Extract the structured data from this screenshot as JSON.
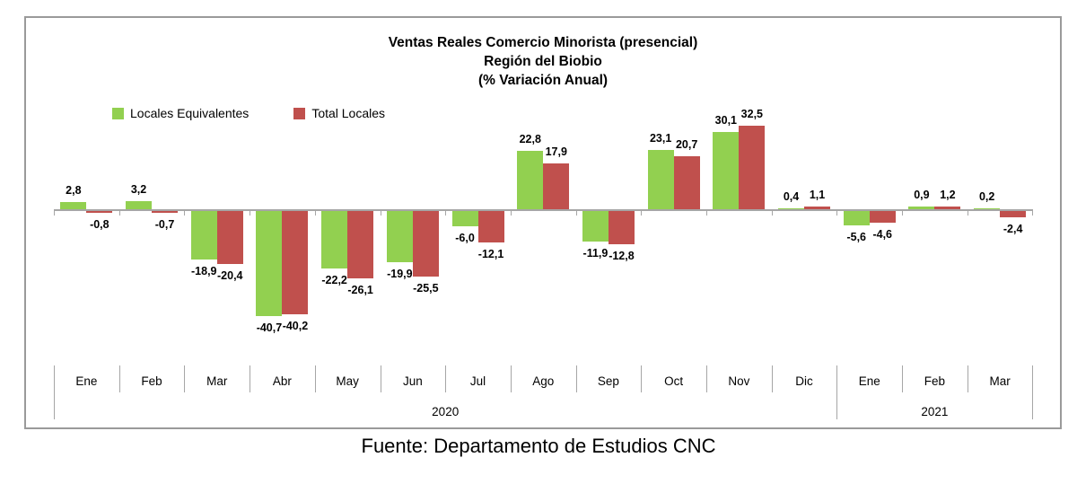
{
  "footer": {
    "text": "Fuente: Departamento de Estudios CNC"
  },
  "chart_data": {
    "type": "bar",
    "title": "Ventas Reales Comercio Minorista (presencial)",
    "subtitle": "Región del Biobio",
    "subtitle2": "(% Variación Anual)",
    "categories": [
      "Ene",
      "Feb",
      "Mar",
      "Abr",
      "May",
      "Jun",
      "Jul",
      "Ago",
      "Sep",
      "Oct",
      "Nov",
      "Dic",
      "Ene",
      "Feb",
      "Mar"
    ],
    "year_groups": [
      {
        "label": "2020",
        "start": 0,
        "span": 12
      },
      {
        "label": "2021",
        "start": 12,
        "span": 3
      }
    ],
    "series": [
      {
        "name": "Locales Equivalentes",
        "color": "#92D050",
        "values": [
          2.8,
          3.2,
          -18.9,
          -40.7,
          -22.2,
          -19.9,
          -6.0,
          22.8,
          -11.9,
          23.1,
          30.1,
          0.4,
          -5.6,
          0.9,
          0.2
        ],
        "labels": [
          "2,8",
          "3,2",
          "-18,9",
          "-40,7",
          "-22,2",
          "-19,9",
          "-6,0",
          "22,8",
          "-11,9",
          "23,1",
          "30,1",
          "0,4",
          "-5,6",
          "0,9",
          "0,2"
        ]
      },
      {
        "name": "Total Locales",
        "color": "#C0504D",
        "values": [
          -0.8,
          -0.7,
          -20.4,
          -40.2,
          -26.1,
          -25.5,
          -12.1,
          17.9,
          -12.8,
          20.7,
          32.5,
          1.1,
          -4.6,
          1.2,
          -2.4
        ],
        "labels": [
          "-0,8",
          "-0,7",
          "-20,4",
          "-40,2",
          "-26,1",
          "-25,5",
          "-12,1",
          "17,9",
          "-12,8",
          "20,7",
          "32,5",
          "1,1",
          "-4,6",
          "1,2",
          "-2,4"
        ]
      }
    ],
    "ylim": [
      -45,
      35
    ],
    "grid": false,
    "legend_position": "top-left",
    "axis_color": "#A6A6A6",
    "value_labels_shown": true
  }
}
